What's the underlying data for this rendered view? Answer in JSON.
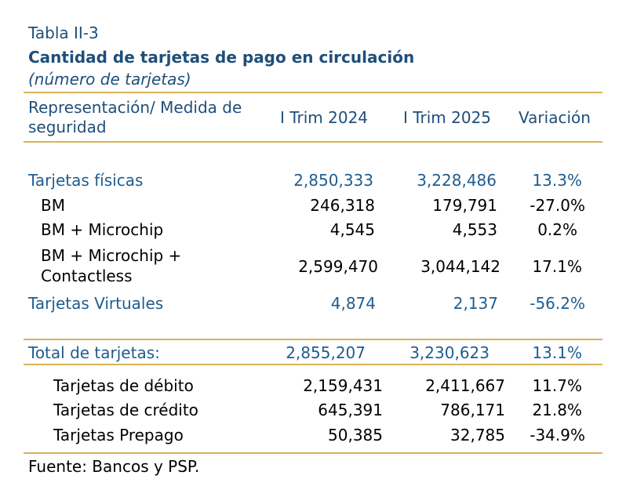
{
  "table": {
    "number": "Tabla II-3",
    "title": "Cantidad de tarjetas de pago en circulación",
    "subtitle": "(número de tarjetas)",
    "headers": {
      "col1_line1": "Representación/ Medida de",
      "col1_line2": "seguridad",
      "col2": "I Trim 2024",
      "col3": "I Trim 2025",
      "col4": "Variación"
    },
    "rows": [
      {
        "label": "Tarjetas físicas",
        "v2024": "2,850,333",
        "v2025": "3,228,486",
        "var": "13.3%"
      },
      {
        "label": "BM",
        "v2024": "246,318",
        "v2025": "179,791",
        "var": "-27.0%"
      },
      {
        "label": "BM + Microchip",
        "v2024": "4,545",
        "v2025": "4,553",
        "var": "0.2%"
      },
      {
        "label_line1": "BM + Microchip +",
        "label_line2": "Contactless",
        "v2024": "2,599,470",
        "v2025": "3,044,142",
        "var": "17.1%"
      },
      {
        "label": "Tarjetas Virtuales",
        "v2024": "4,874",
        "v2025": "2,137",
        "var": "-56.2%"
      }
    ],
    "total": {
      "label": "Total de tarjetas:",
      "v2024": "2,855,207",
      "v2025": "3,230,623",
      "var": "13.1%"
    },
    "breakdown": [
      {
        "label": "Tarjetas de débito",
        "v2024": "2,159,431",
        "v2025": "2,411,667",
        "var": "11.7%"
      },
      {
        "label": "Tarjetas de crédito",
        "v2024": "645,391",
        "v2025": "786,171",
        "var": "21.8%"
      },
      {
        "label": "Tarjetas Prepago",
        "v2024": "50,385",
        "v2025": "32,785",
        "var": "-34.9%"
      }
    ],
    "source": "Fuente: Bancos y PSP."
  },
  "colors": {
    "title": "#1f4e79",
    "highlight": "#1f5c8f",
    "rule": "#d9b35a"
  }
}
